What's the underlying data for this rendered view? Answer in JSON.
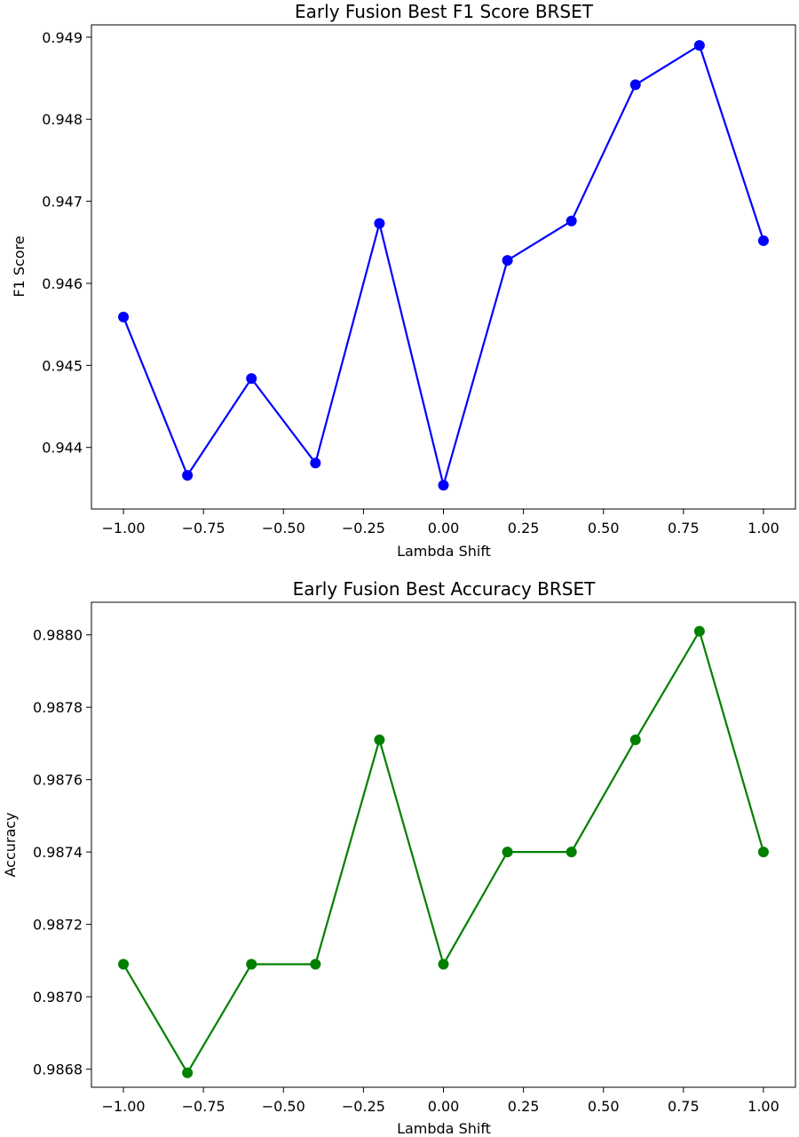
{
  "chart_data": [
    {
      "type": "line",
      "title": "Early Fusion Best F1 Score BRSET",
      "xlabel": "Lambda Shift",
      "ylabel": "F1 Score",
      "color": "#0000ff",
      "marker": "circle",
      "grid": false,
      "legend": "none",
      "xlim": [
        -1.1,
        1.1
      ],
      "ylim": [
        0.94325,
        0.94915
      ],
      "xticks": [
        "-1.00",
        "-0.75",
        "-0.50",
        "-0.25",
        "0.00",
        "0.25",
        "0.50",
        "0.75",
        "1.00"
      ],
      "yticks": [
        "0.944",
        "0.945",
        "0.946",
        "0.947",
        "0.948",
        "0.949"
      ],
      "series": [
        {
          "x": [
            -1.0,
            -0.8,
            -0.6,
            -0.4,
            -0.2,
            0.0,
            0.2,
            0.4,
            0.6,
            0.8,
            1.0
          ],
          "y": [
            0.94559,
            0.94366,
            0.94484,
            0.94381,
            0.94673,
            0.94354,
            0.94628,
            0.94676,
            0.94842,
            0.9489,
            0.94652
          ]
        }
      ]
    },
    {
      "type": "line",
      "title": "Early Fusion Best Accuracy BRSET",
      "xlabel": "Lambda Shift",
      "ylabel": "Accuracy",
      "color": "#008000",
      "marker": "circle",
      "grid": false,
      "legend": "none",
      "xlim": [
        -1.1,
        1.1
      ],
      "ylim": [
        0.98675,
        0.98809
      ],
      "xticks": [
        "-1.00",
        "-0.75",
        "-0.50",
        "-0.25",
        "0.00",
        "0.25",
        "0.50",
        "0.75",
        "1.00"
      ],
      "yticks": [
        "0.9868",
        "0.9870",
        "0.9872",
        "0.9874",
        "0.9876",
        "0.9878",
        "0.9880"
      ],
      "series": [
        {
          "x": [
            -1.0,
            -0.8,
            -0.6,
            -0.4,
            -0.2,
            0.0,
            0.2,
            0.4,
            0.6,
            0.8,
            1.0
          ],
          "y": [
            0.98709,
            0.98679,
            0.98709,
            0.98709,
            0.98771,
            0.98709,
            0.9874,
            0.9874,
            0.98771,
            0.98801,
            0.9874
          ]
        }
      ]
    }
  ]
}
